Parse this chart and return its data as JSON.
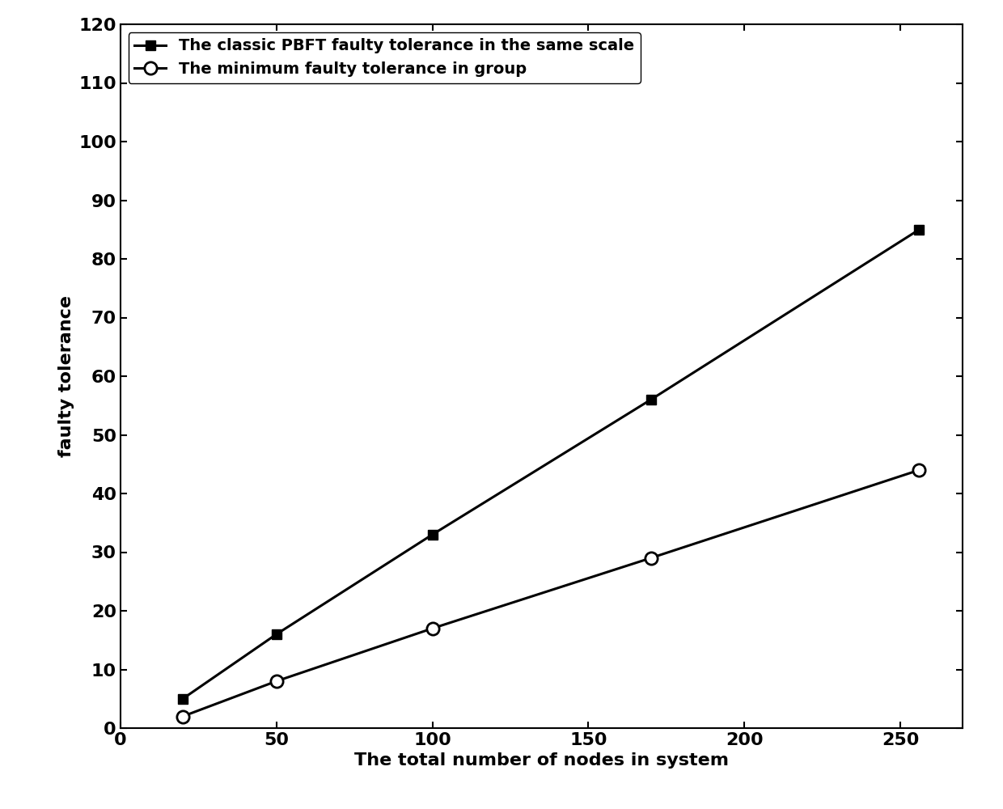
{
  "x": [
    20,
    50,
    100,
    170,
    256
  ],
  "pbft_y": [
    5,
    16,
    33,
    56,
    85
  ],
  "min_y": [
    2,
    8,
    17,
    29,
    44
  ],
  "pbft_label": "The classic PBFT faulty tolerance in the same scale",
  "min_label": "The minimum faulty tolerance in group",
  "xlabel": "The total number of nodes in system",
  "ylabel": "faulty tolerance",
  "xlim": [
    0,
    270
  ],
  "ylim": [
    0,
    120
  ],
  "xticks": [
    0,
    50,
    100,
    150,
    200,
    250
  ],
  "yticks": [
    0,
    10,
    20,
    30,
    40,
    50,
    60,
    70,
    80,
    90,
    100,
    110,
    120
  ],
  "line_color": "#000000",
  "bg_color": "#ffffff",
  "linewidth": 2.2,
  "markersize_square": 9,
  "markersize_circle": 11,
  "label_fontsize": 16,
  "tick_fontsize": 16,
  "legend_fontsize": 14
}
